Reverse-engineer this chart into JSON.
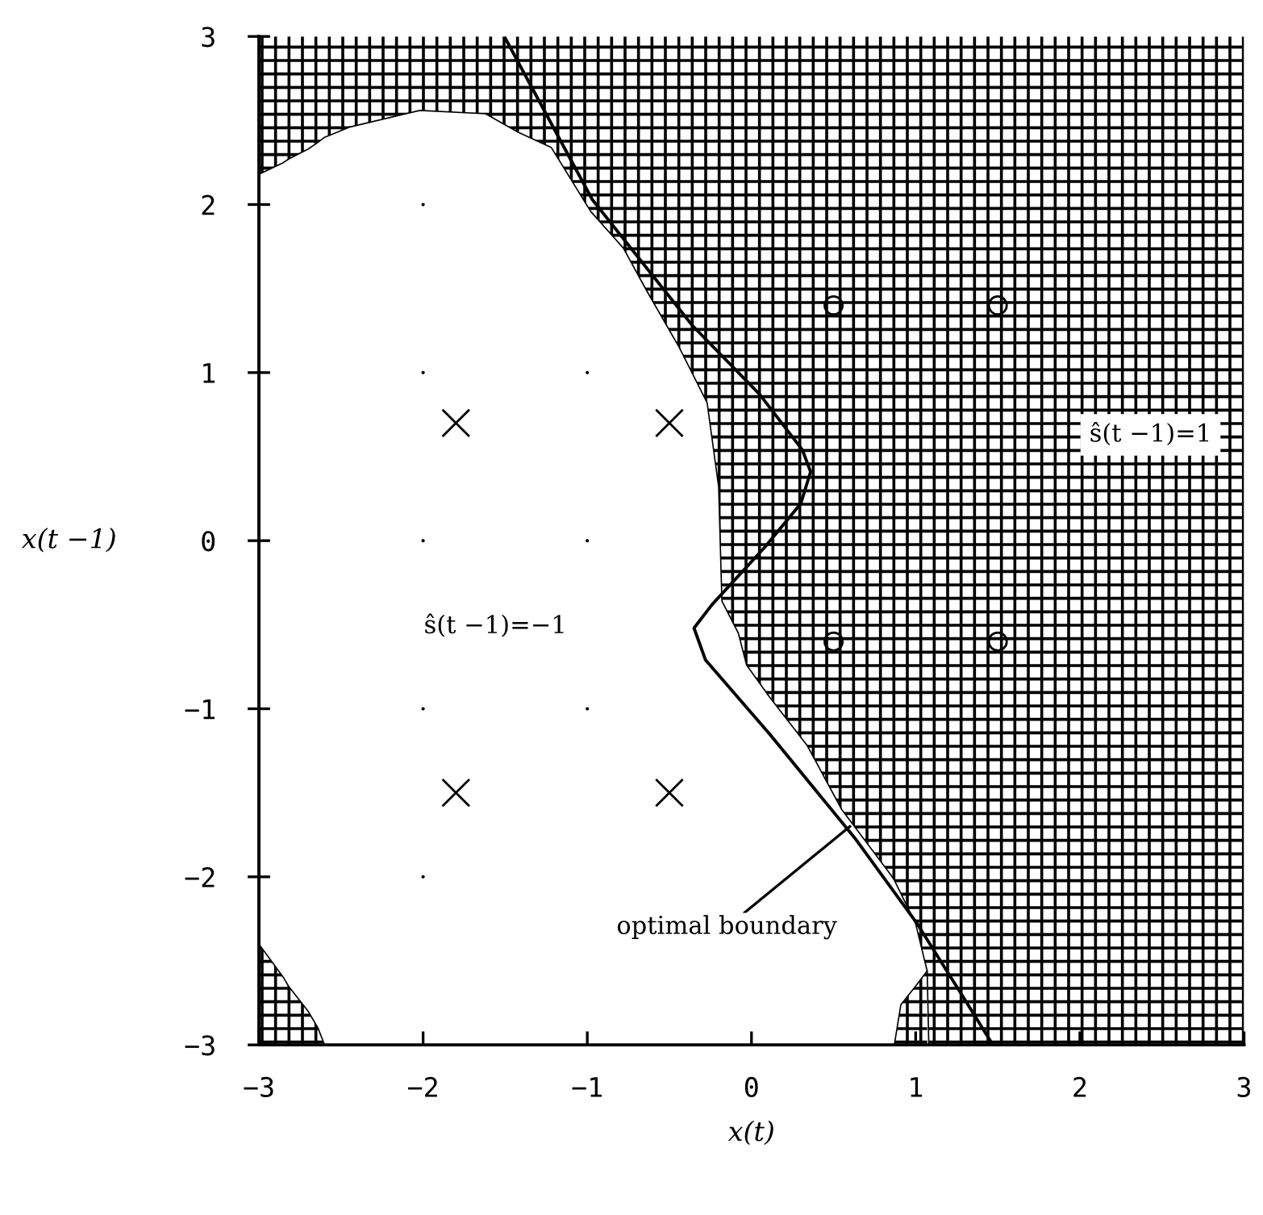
{
  "chart_data": {
    "type": "scatter",
    "xlabel": "x(t)",
    "ylabel": "x(t −1)",
    "xlim": [
      -3,
      3
    ],
    "ylim": [
      -3,
      3
    ],
    "xticks": [
      -3,
      -2,
      -1,
      0,
      1,
      2,
      3
    ],
    "yticks": [
      -3,
      -2,
      -1,
      0,
      1,
      2,
      3
    ],
    "grid": false,
    "legend": false,
    "annotations": [
      {
        "text": "optimal boundary",
        "x": 0.6,
        "y": -1.7
      },
      "ŝ(t −1)=1",
      "ŝ(t −1)=−1"
    ],
    "series": [
      {
        "type": "line",
        "color": "#000000",
        "marker": "none",
        "line_style": "solid",
        "x": [
          -3,
          -2.85,
          -2.82,
          -2.7,
          -2.64,
          -2.6,
          -2.45,
          -2.02,
          -1.62,
          -1.42,
          -1.22,
          -0.98,
          -0.78,
          -0.64,
          -0.44,
          -0.27,
          -0.2,
          -0.18,
          -0.08,
          -0.03,
          0.11,
          0.34,
          0.55,
          0.85,
          0.87,
          0.91,
          1.0,
          1.07,
          1.08,
          3
        ],
        "values": [
          2.18,
          2.25,
          2.27,
          2.33,
          2.37,
          2.4,
          2.46,
          2.56,
          2.54,
          2.43,
          2.34,
          1.96,
          1.74,
          1.49,
          1.15,
          0.82,
          0.32,
          -0.36,
          -0.55,
          -0.74,
          -0.93,
          -1.22,
          -1.6,
          -1.99,
          -2.02,
          -2.1,
          -2.28,
          -2.56,
          -3,
          -3
        ],
        "lower": [
          2.18,
          2.25,
          2.27,
          2.33,
          2.37,
          2.4,
          2.46,
          2.56,
          2.54,
          2.43,
          2.34,
          1.96,
          1.74,
          1.49,
          1.15,
          0.82,
          0.32,
          -0.36,
          -0.55,
          -0.74,
          -0.93,
          -1.22,
          -1.6,
          -1.99,
          -2.02,
          -2.1,
          -2.28,
          -2.56,
          -3,
          -3
        ],
        "upper": [
          3,
          3,
          3,
          3,
          3,
          3,
          3,
          3,
          3,
          3,
          3,
          3,
          3,
          3,
          3,
          3,
          3,
          3,
          3,
          3,
          3,
          3,
          3,
          3,
          3,
          3,
          3,
          3,
          3,
          3
        ]
      },
      {
        "type": "line",
        "color": "#000000",
        "marker": "none",
        "line_style": "solid",
        "x": [
          -3,
          -2.85,
          -2.82,
          -2.7,
          -2.64,
          -2.6
        ],
        "values": [
          -2.4,
          -2.6,
          -2.65,
          -2.8,
          -2.9,
          -3
        ],
        "lower": [
          -3,
          -3,
          -3,
          -3,
          -3,
          -3
        ],
        "upper": [
          -2.4,
          -2.6,
          -2.65,
          -2.8,
          -2.9,
          -3
        ]
      },
      {
        "type": "line",
        "color": "#000000",
        "marker": "none",
        "line_style": "solid",
        "x": [
          0.87,
          0.91,
          1.0,
          1.07
        ],
        "values": [
          -3,
          -2.76,
          -2.65,
          -2.56
        ],
        "lower": [
          -3,
          -3,
          -3,
          -3
        ],
        "upper": [
          -3,
          -2.76,
          -2.65,
          -2.56
        ]
      },
      {
        "type": "line",
        "color": "#000000",
        "marker": "none",
        "line_style": "solid",
        "x": [
          -1.5,
          -0.97,
          -0.36,
          0.05,
          0.31,
          0.36,
          0.3,
          0.08,
          -0.24,
          -0.35,
          -0.28,
          0.11,
          0.63,
          1.01,
          1.28,
          1.47
        ],
        "values": [
          2.99,
          2.03,
          1.28,
          0.87,
          0.54,
          0.41,
          0.22,
          -0.04,
          -0.38,
          -0.52,
          -0.71,
          -1.15,
          -1.77,
          -2.28,
          -2.7,
          -3.0
        ]
      },
      {
        "color": "#000000",
        "marker": "cross",
        "x": [
          -1.8,
          -0.5,
          -1.8,
          -0.5
        ],
        "values": [
          0.7,
          0.7,
          -1.5,
          -1.5
        ]
      },
      {
        "color": "#000000",
        "marker": "circle",
        "x": [
          0.5,
          1.5,
          0.5,
          1.5
        ],
        "values": [
          1.4,
          1.4,
          -0.6,
          -0.6
        ]
      },
      {
        "color": "#000000",
        "marker": "dot",
        "x": [
          -2,
          -2,
          -1,
          -2,
          -1,
          -2,
          -1,
          -2
        ],
        "values": [
          2,
          1,
          1,
          0,
          0,
          -1,
          -1,
          -2
        ]
      }
    ]
  }
}
